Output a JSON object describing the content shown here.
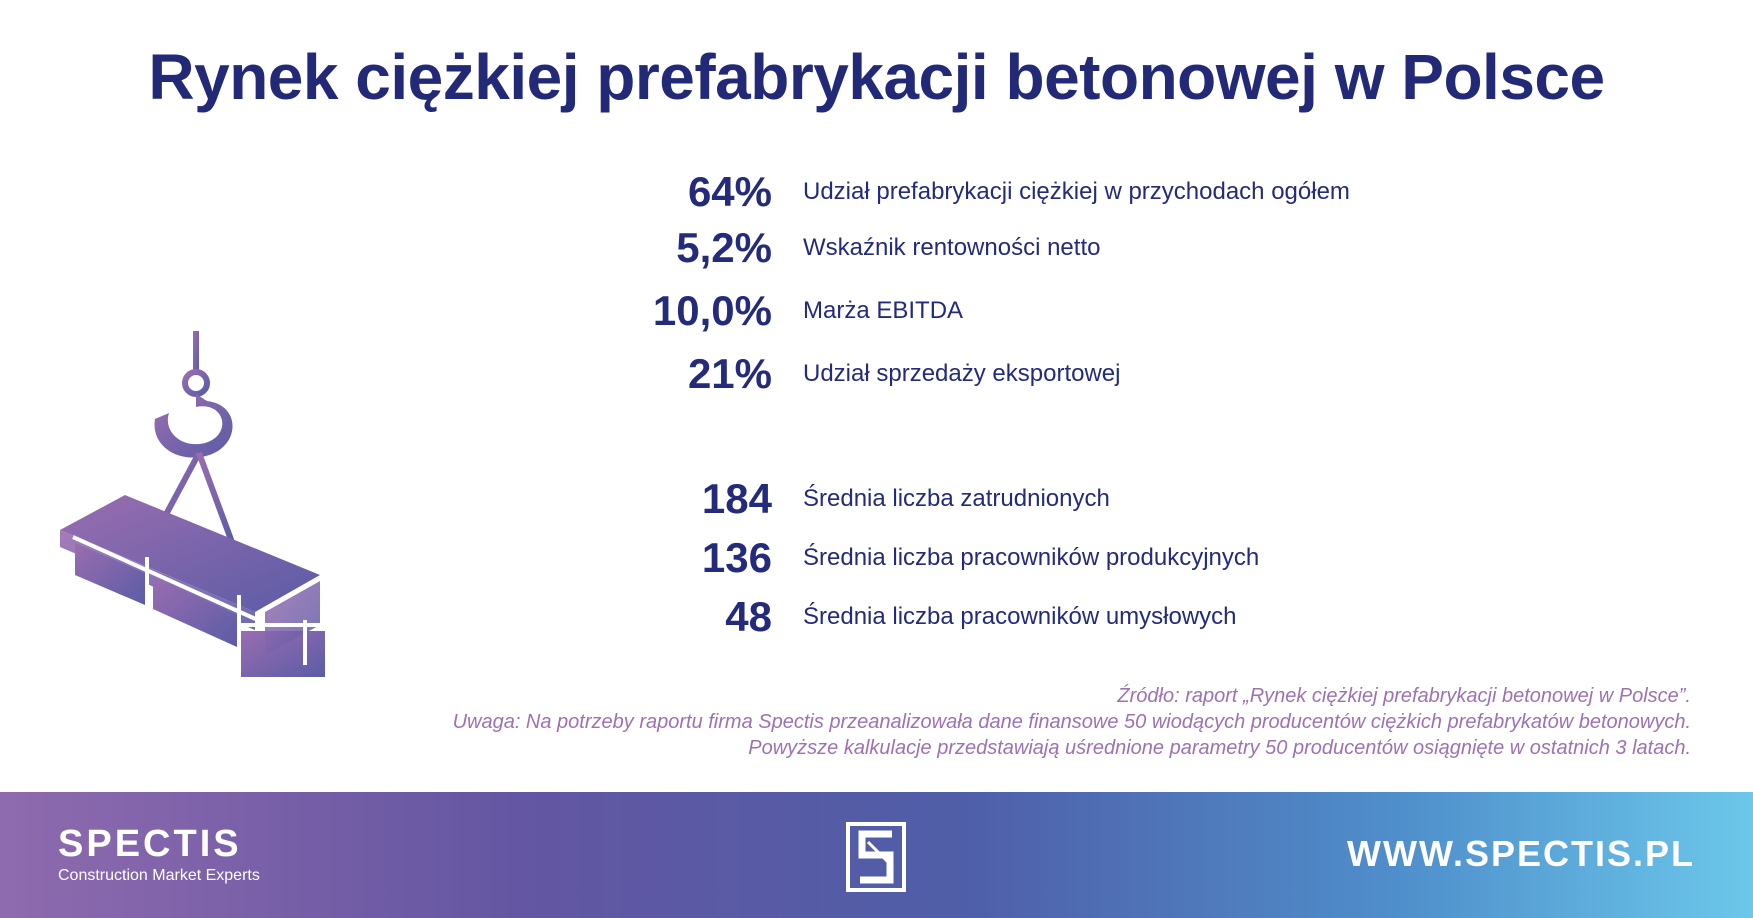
{
  "title": "Rynek ciężkiej prefabrykacji betonowej w Polsce",
  "stats_group1": [
    {
      "value": "64%",
      "label": "Udział prefabrykacji ciężkiej w przychodach ogółem"
    },
    {
      "value": "5,2%",
      "label": "Wskaźnik rentowności netto"
    },
    {
      "value": "10,0%",
      "label": "Marża EBITDA"
    },
    {
      "value": "21%",
      "label": "Udział sprzedaży eksportowej"
    }
  ],
  "stats_group2": [
    {
      "value": "184",
      "label": "Średnia liczba zatrudnionych"
    },
    {
      "value": "136",
      "label": "Średnia liczba pracowników produkcyjnych"
    },
    {
      "value": "48",
      "label": "Średnia liczba pracowników umysłowych"
    }
  ],
  "notes": {
    "source": "Źródło: raport „Rynek ciężkiej prefabrykacji betonowej w Polsce”.",
    "remark_line1": "Uwaga: Na potrzeby raportu firma Spectis przeanalizowała dane finansowe 50 wiodących producentów ciężkich prefabrykatów betonowych.",
    "remark_line2": "Powyższe kalkulacje przedstawiają uśrednione parametry 50 producentów osiągnięte w ostatnich 3 latach."
  },
  "footer": {
    "brand_name": "SPECTIS",
    "brand_tagline": "Construction Market Experts",
    "logo_icon": "spectis-s-logo-icon",
    "url": "WWW.SPECTIS.PL"
  },
  "illustration_icon": "crane-hook-concrete-beam-icon",
  "colors": {
    "title": "#222a78",
    "notes": "#9c72b4",
    "footer_start": "#8f6aae",
    "footer_end": "#6bc7ea"
  }
}
